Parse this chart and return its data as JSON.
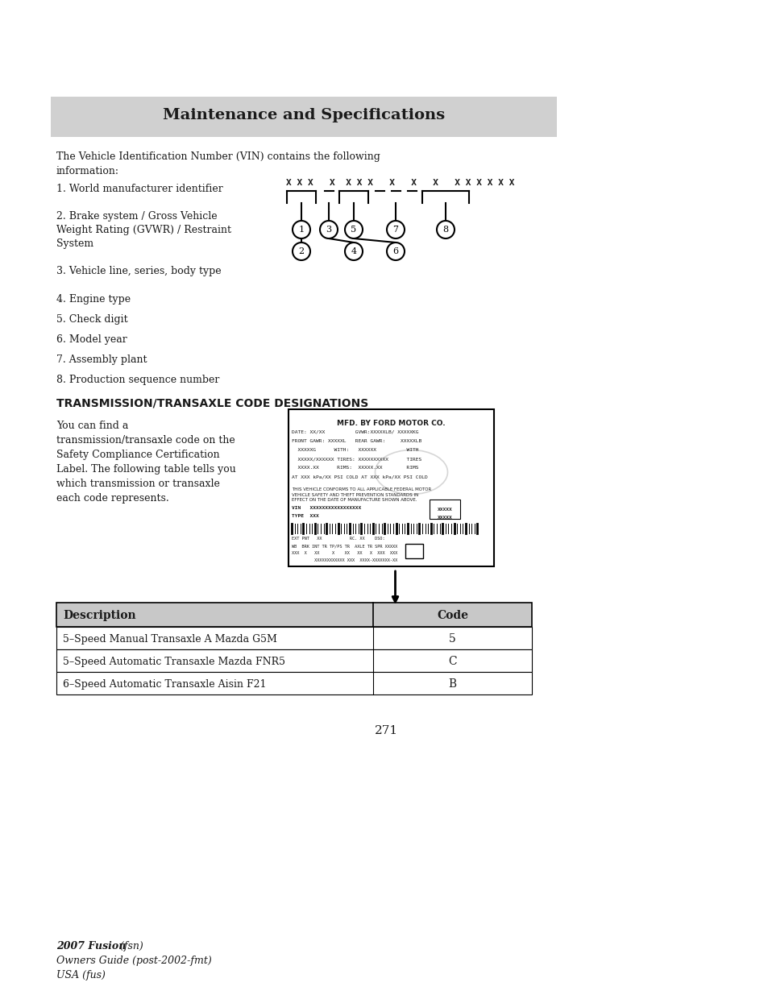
{
  "page_bg": "#ffffff",
  "header_bg": "#d0d0d0",
  "header_text": "Maintenance and Specifications",
  "header_fontsize": 14,
  "vin_intro": "The Vehicle Identification Number (VIN) contains the following\ninformation:",
  "vin_items": [
    "1. World manufacturer identifier",
    "2. Brake system / Gross Vehicle\nWeight Rating (GVWR) / Restraint\nSystem",
    "3. Vehicle line, series, body type",
    "4. Engine type",
    "5. Check digit",
    "6. Model year",
    "7. Assembly plant",
    "8. Production sequence number"
  ],
  "section_title": "TRANSMISSION/TRANSAXLE CODE DESIGNATIONS",
  "section_intro": "You can find a\ntransmission/transaxle code on the\nSafety Compliance Certification\nLabel. The following table tells you\nwhich transmission or transaxle\neach code represents.",
  "table_headers": [
    "Description",
    "Code"
  ],
  "table_rows": [
    [
      "5–Speed Manual Transaxle A Mazda G5M",
      "5"
    ],
    [
      "5–Speed Automatic Transaxle Mazda FNR5",
      "C"
    ],
    [
      "6–Speed Automatic Transaxle Aisin F21",
      "B"
    ]
  ],
  "table_header_bg": "#c8c8c8",
  "table_row_bg": "#ffffff",
  "page_number": "271",
  "footer_line1_bold": "2007 Fusion",
  "footer_line1_italic": " (fsn)",
  "footer_line2": "Owners Guide (post-2002-fmt)",
  "footer_line3": "USA (fus)"
}
